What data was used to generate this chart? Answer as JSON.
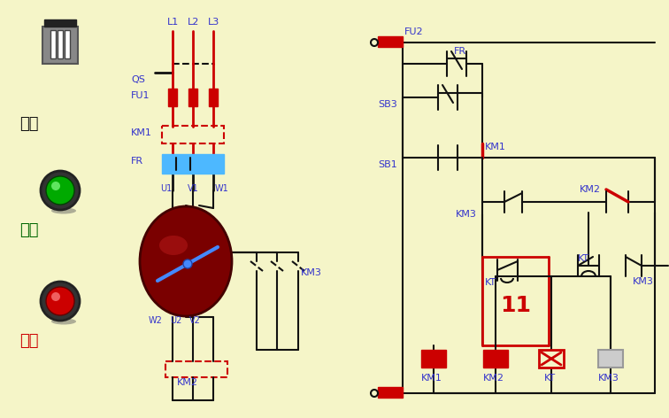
{
  "bg_color": "#f5f5c8",
  "colors": {
    "red": "#cc0000",
    "blue": "#3333cc",
    "black": "#111111",
    "green": "#006600",
    "light_blue": "#4db8ff",
    "bg": "#f5f5c8",
    "gray": "#888888",
    "dark_red": "#7a0000"
  },
  "labels": {
    "QS": "QS",
    "FU1": "FU1",
    "KM1": "KM1",
    "FR": "FR",
    "L1": "L1",
    "L2": "L2",
    "L3": "L3",
    "U1": "U1",
    "V1": "V1",
    "W1": "W1",
    "U2": "U2",
    "V2": "V2",
    "W2": "W2",
    "KM2": "KM2",
    "KM3": "KM3",
    "FU2": "FU2",
    "SB3": "SB3",
    "SB1": "SB1",
    "KT": "KT",
    "power": "电源",
    "start": "启动",
    "stop": "停止",
    "num11": "11"
  }
}
